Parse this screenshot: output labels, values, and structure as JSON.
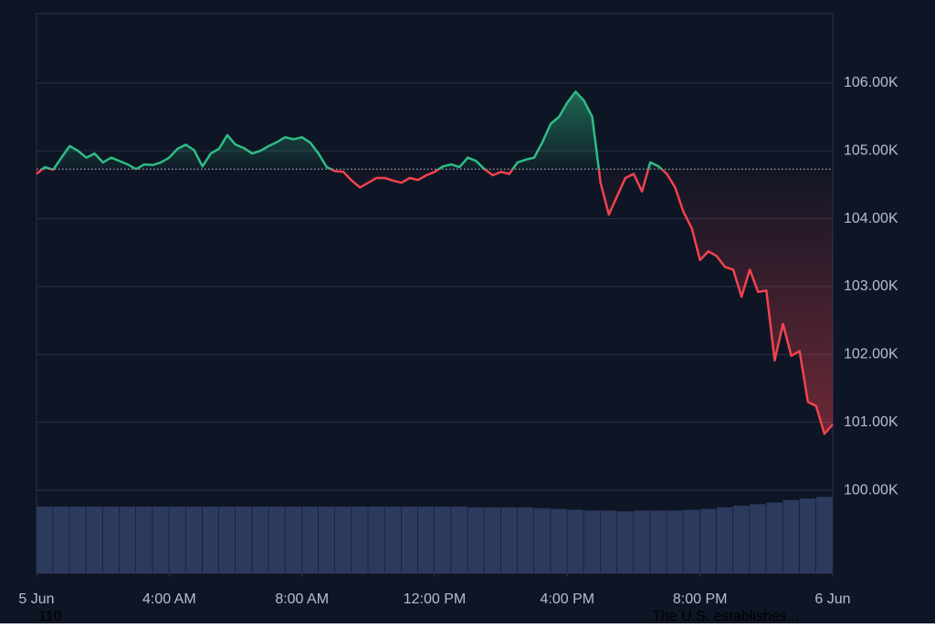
{
  "chart_data": {
    "type": "line",
    "x": [
      0,
      0.25,
      0.5,
      0.75,
      1,
      1.25,
      1.5,
      1.75,
      2,
      2.25,
      2.5,
      2.75,
      3,
      3.25,
      3.5,
      3.75,
      4,
      4.25,
      4.5,
      4.75,
      5,
      5.25,
      5.5,
      5.75,
      6,
      6.25,
      6.5,
      6.75,
      7,
      7.25,
      7.5,
      7.75,
      8,
      8.25,
      8.5,
      8.75,
      9,
      9.25,
      9.5,
      9.75,
      10,
      10.25,
      10.5,
      10.75,
      11,
      11.25,
      11.5,
      11.75,
      12,
      12.25,
      12.5,
      12.75,
      13,
      13.25,
      13.5,
      13.75,
      14,
      14.25,
      14.5,
      14.75,
      15,
      15.25,
      15.5,
      15.75,
      16,
      16.25,
      16.5,
      16.75,
      17,
      17.25,
      17.5,
      17.75,
      18,
      18.25,
      18.5,
      18.75,
      19,
      19.25,
      19.5,
      19.75,
      20,
      20.25,
      20.5,
      20.75,
      21,
      21.25,
      21.5,
      21.75,
      22,
      22.25,
      22.5,
      22.75,
      23,
      23.25,
      23.5,
      23.75,
      24
    ],
    "values": [
      104660,
      104760,
      104720,
      104900,
      105070,
      105000,
      104900,
      104960,
      104830,
      104900,
      104850,
      104800,
      104730,
      104800,
      104790,
      104830,
      104900,
      105030,
      105090,
      105010,
      104770,
      104960,
      105030,
      105230,
      105090,
      105040,
      104960,
      105000,
      105070,
      105130,
      105200,
      105170,
      105200,
      105120,
      104960,
      104760,
      104700,
      104690,
      104560,
      104460,
      104530,
      104600,
      104600,
      104560,
      104530,
      104600,
      104570,
      104640,
      104690,
      104770,
      104800,
      104760,
      104900,
      104850,
      104730,
      104640,
      104690,
      104660,
      104830,
      104870,
      104900,
      105130,
      105400,
      105500,
      105710,
      105870,
      105740,
      105500,
      104530,
      104060,
      104330,
      104600,
      104660,
      104400,
      104830,
      104770,
      104660,
      104460,
      104100,
      103860,
      103390,
      103520,
      103450,
      103290,
      103250,
      102850,
      103250,
      102920,
      102940,
      101910,
      102450,
      101980,
      102050,
      101300,
      101240,
      100830,
      100970
    ],
    "baseline": 104730,
    "up_color": "#2ebd85",
    "down_color": "#f0434f",
    "xlim": [
      0,
      24
    ],
    "xticks": [
      {
        "value": 0,
        "label": "5 Jun"
      },
      {
        "value": 4,
        "label": "4:00 AM"
      },
      {
        "value": 8,
        "label": "8:00 AM"
      },
      {
        "value": 12,
        "label": "12:00 PM"
      },
      {
        "value": 16,
        "label": "4:00 PM"
      },
      {
        "value": 20,
        "label": "8:00 PM"
      },
      {
        "value": 24,
        "label": "6 Jun"
      }
    ],
    "ylim": [
      98777,
      107020
    ],
    "yticks": [
      {
        "value": 100000,
        "label": "100.00K"
      },
      {
        "value": 101000,
        "label": "101.00K"
      },
      {
        "value": 102000,
        "label": "102.00K"
      },
      {
        "value": 103000,
        "label": "103.00K"
      },
      {
        "value": 104000,
        "label": "104.00K"
      },
      {
        "value": 105000,
        "label": "105.00K"
      },
      {
        "value": 106000,
        "label": "106.00K"
      }
    ],
    "grid": true,
    "volume": {
      "color": "#2c3a5e",
      "lim": [
        0,
        100
      ],
      "values": [
        83,
        83,
        83,
        83,
        83,
        83,
        83,
        83,
        83,
        83,
        83,
        83,
        83,
        83,
        83,
        83,
        83,
        83,
        83,
        83,
        83,
        83,
        83,
        83,
        83,
        83,
        82,
        82,
        82,
        82,
        81,
        80,
        79,
        78,
        78,
        77,
        78,
        78,
        78,
        79,
        80,
        82,
        84,
        86,
        88,
        91,
        93,
        95
      ]
    },
    "annotations": [
      "110",
      "The U.S. establishes..."
    ]
  }
}
